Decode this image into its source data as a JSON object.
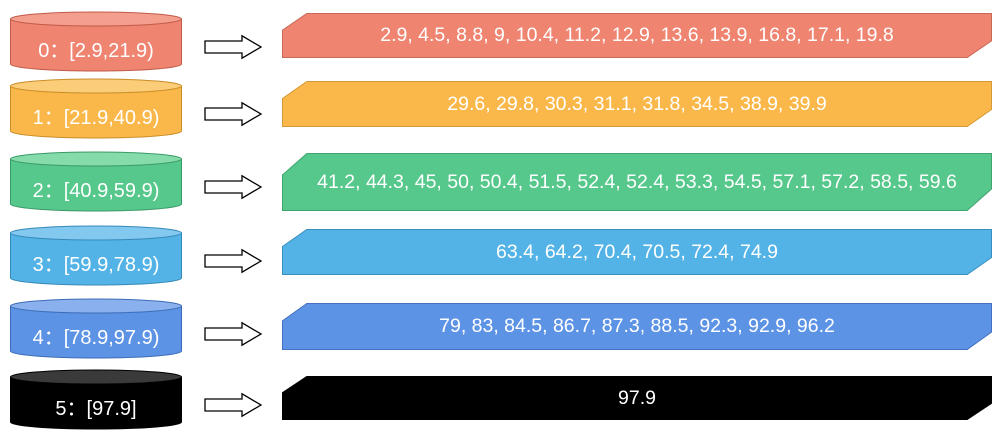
{
  "buckets": [
    {
      "label": "0：[2.9,21.9)",
      "values": "2.9, 4.5, 8.8, 9, 10.4, 11.2, 12.9, 13.6, 13.9, 16.8, 17.1, 19.8",
      "color": "#ef8470",
      "top_color": "#f49e8d",
      "stroke": "#c05a48",
      "box_stroke": "#c86a58"
    },
    {
      "label": "1：[21.9,40.9)",
      "values": "29.6, 29.8, 30.3, 31.1, 31.8, 34.5, 38.9, 39.9",
      "color": "#fbb84a",
      "top_color": "#fccd78",
      "stroke": "#c98d28",
      "box_stroke": "#d39a3a"
    },
    {
      "label": "2：[40.9,59.9)",
      "values": "41.2, 44.3, 45, 50, 50.4, 51.5, 52.4, 52.4, 53.3, 54.5, 57.1, 57.2, 58.5, 59.6",
      "color": "#57c88c",
      "top_color": "#86dbab",
      "stroke": "#3a9a66",
      "box_stroke": "#40a570"
    },
    {
      "label": "3：[59.9,78.9)",
      "values": "63.4, 64.2, 70.4, 70.5, 72.4, 74.9",
      "color": "#53b3e6",
      "top_color": "#83c9ef",
      "stroke": "#3588b8",
      "box_stroke": "#3a8fc0"
    },
    {
      "label": "4：[78.9,97.9)",
      "values": "79, 83, 84.5, 86.7, 87.3, 88.5, 92.3, 92.9, 96.2",
      "color": "#5d93e4",
      "top_color": "#8ab1ed",
      "stroke": "#3c6cb8",
      "box_stroke": "#4472c0"
    },
    {
      "label": "5：[97.9]",
      "values": "97.9",
      "color": "#000000",
      "top_color": "#3a3a3a",
      "stroke": "#000000",
      "box_stroke": "#000000"
    }
  ]
}
